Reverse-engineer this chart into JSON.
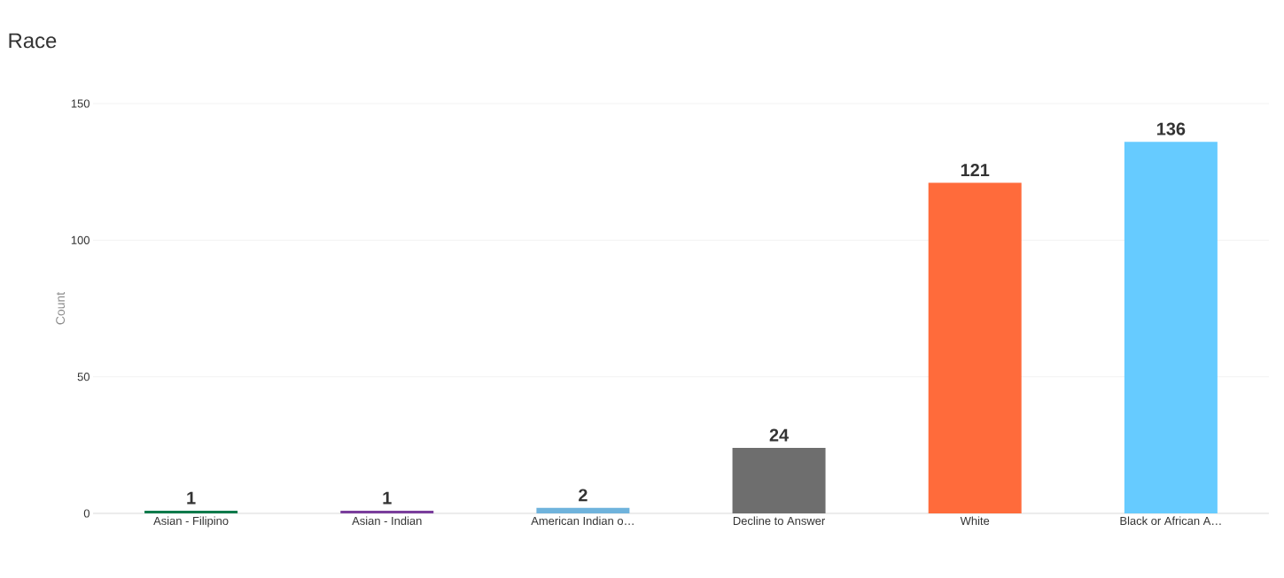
{
  "chart_data": {
    "type": "bar",
    "title": "Race",
    "ylabel": "Count",
    "categories": [
      "Asian - Filipino",
      "Asian - Indian",
      "American Indian o…",
      "Decline to Answer",
      "White",
      "Black or African A…"
    ],
    "values": [
      1,
      1,
      2,
      24,
      121,
      136
    ],
    "colors": [
      "#0b7a4b",
      "#7a3d9c",
      "#6fb3dc",
      "#6e6e6e",
      "#ff6b3b",
      "#66cbff"
    ],
    "ylim": [
      0,
      150
    ],
    "yticks": [
      0,
      50,
      100,
      150
    ],
    "grid": "y",
    "data_labels": true
  }
}
